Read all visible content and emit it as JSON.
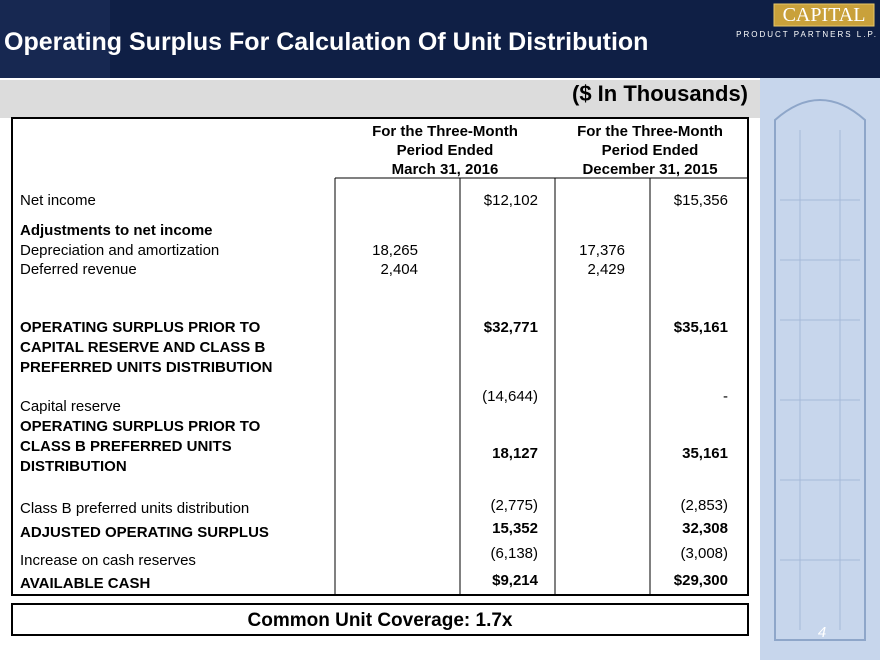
{
  "header": {
    "title": "Operating Surplus For Calculation Of Unit Distribution",
    "logo": "CAPITAL",
    "logo_sub": "PRODUCT PARTNERS L.P."
  },
  "units": "($ In Thousands)",
  "table": {
    "columns": [
      [
        "For the Three-Month",
        "Period Ended",
        "March 31, 2016"
      ],
      [
        "For the Three-Month",
        "Period Ended",
        "December 31, 2015"
      ]
    ],
    "rows": [
      {
        "label": [
          "Net income"
        ],
        "c1_total": "$12,102",
        "c2_total": "$15,356"
      },
      {
        "label": [
          "Adjustments to net income"
        ],
        "bold": true
      },
      {
        "label": [
          "Depreciation and amortization"
        ],
        "c1_sub": "18,265",
        "c2_sub": "17,376"
      },
      {
        "label": [
          "Deferred revenue"
        ],
        "c1_sub": "2,404",
        "c2_sub": "2,429"
      },
      {
        "label": [
          "OPERATING SURPLUS PRIOR TO",
          "CAPITAL RESERVE AND CLASS B",
          "PREFERRED UNITS DISTRIBUTION"
        ],
        "bold": true,
        "c1_total": "$32,771",
        "c2_total": "$35,161"
      },
      {
        "label": [
          "Capital reserve"
        ],
        "c1_total": "(14,644)",
        "c2_total": "-"
      },
      {
        "label": [
          "OPERATING SURPLUS PRIOR TO",
          "CLASS B PREFERRED UNITS",
          "DISTRIBUTION"
        ],
        "bold": true,
        "c1_total": "18,127",
        "c2_total": "35,161"
      },
      {
        "label": [
          "Class B preferred units distribution"
        ],
        "c1_total": "(2,775)",
        "c2_total": "(2,853)"
      },
      {
        "label": [
          "ADJUSTED OPERATING SURPLUS"
        ],
        "bold": true,
        "c1_total": "15,352",
        "c2_total": "32,308"
      },
      {
        "label": [
          "Increase on cash reserves"
        ],
        "c1_total": "(6,138)",
        "c2_total": "(3,008)"
      },
      {
        "label": [
          "AVAILABLE CASH"
        ],
        "bold": true,
        "c1_total": "$9,214",
        "c2_total": "$29,300"
      }
    ]
  },
  "footer": "Common Unit Coverage: 1.7x",
  "page_number": "4"
}
